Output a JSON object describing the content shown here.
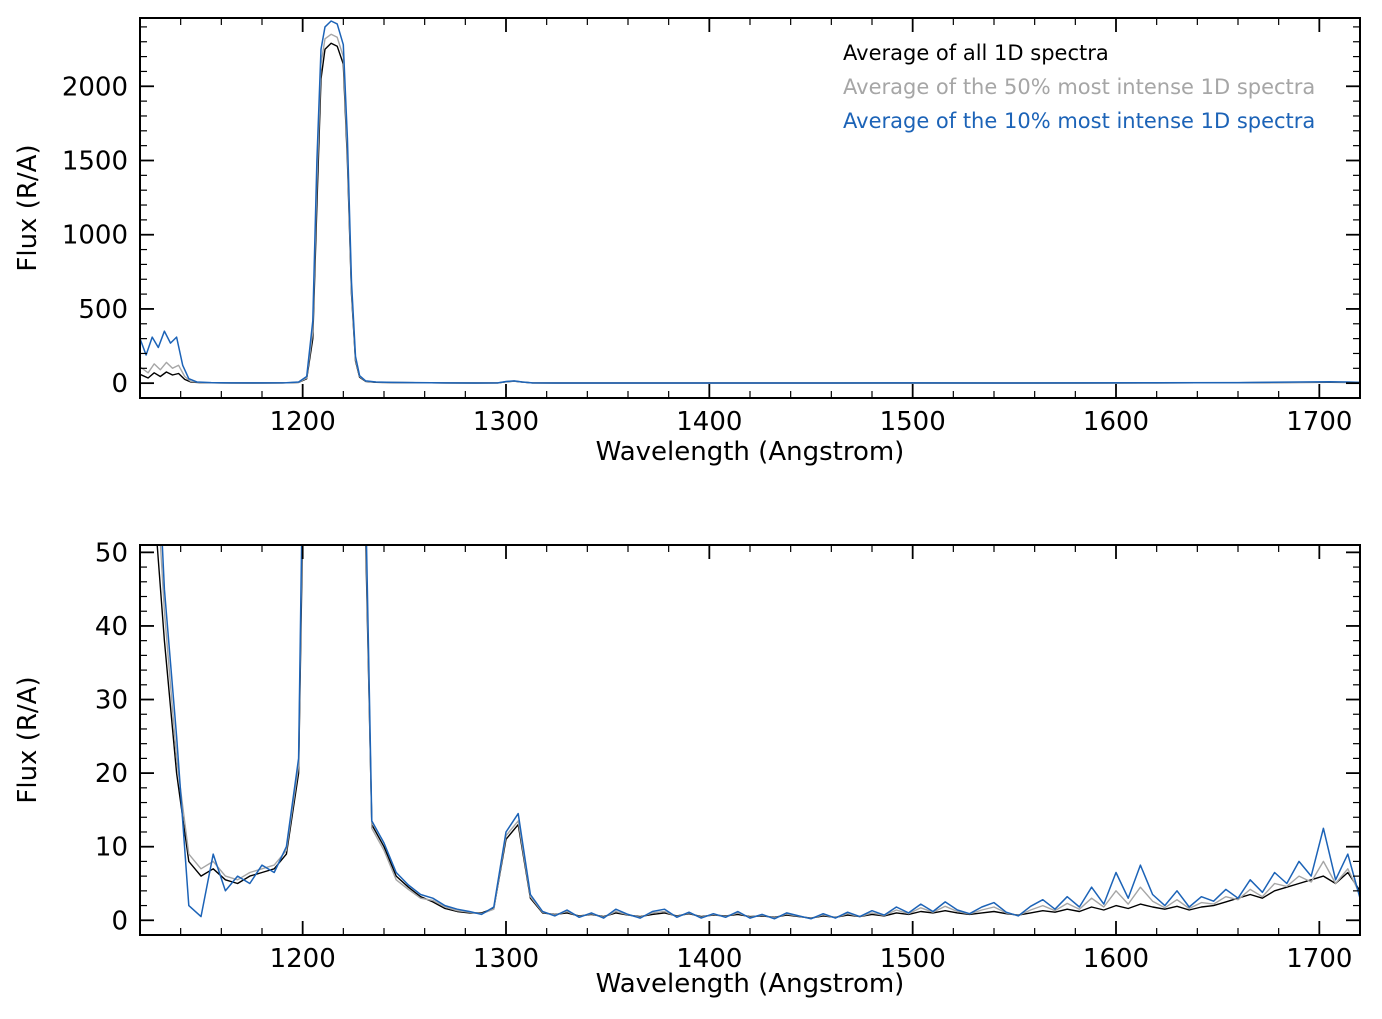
{
  "figure": {
    "background": "#ffffff",
    "frame_color": "#000000",
    "text_color": "#000000"
  },
  "colors": {
    "all_spectra": "#000000",
    "pct50": "#a6a6a6",
    "pct10": "#1c63b7"
  },
  "chart_data": [
    {
      "id": "top-spectrum",
      "type": "line",
      "title": "",
      "xlabel": "Wavelength (Angstrom)",
      "ylabel": "Flux (R/A)",
      "xlim": [
        1120,
        1720
      ],
      "ylim": [
        -100,
        2460
      ],
      "xticks": [
        1200,
        1300,
        1400,
        1500,
        1600,
        1700
      ],
      "xminor_step": 20,
      "yticks": [
        0,
        500,
        1000,
        1500,
        2000
      ],
      "yminor_step": 100,
      "grid": false,
      "legend": {
        "position": "top-right",
        "entries": [
          {
            "label": "Average of all 1D spectra",
            "color": "#000000"
          },
          {
            "label": "Average of the 50% most intense 1D spectra",
            "color": "#a6a6a6"
          },
          {
            "label": "Average of the 10% most intense 1D spectra",
            "color": "#1c63b7"
          }
        ]
      },
      "series": [
        {
          "name": "Average of all 1D spectra",
          "color": "#000000",
          "width": 1.4,
          "points": [
            [
              1120,
              60
            ],
            [
              1124,
              35
            ],
            [
              1127,
              70
            ],
            [
              1130,
              45
            ],
            [
              1133,
              75
            ],
            [
              1136,
              55
            ],
            [
              1139,
              65
            ],
            [
              1142,
              25
            ],
            [
              1145,
              8
            ],
            [
              1150,
              3
            ],
            [
              1160,
              2
            ],
            [
              1175,
              1
            ],
            [
              1190,
              2
            ],
            [
              1198,
              5
            ],
            [
              1202,
              30
            ],
            [
              1205,
              300
            ],
            [
              1207,
              1200
            ],
            [
              1209,
              2050
            ],
            [
              1211,
              2250
            ],
            [
              1214,
              2290
            ],
            [
              1217,
              2270
            ],
            [
              1220,
              2150
            ],
            [
              1222,
              1500
            ],
            [
              1224,
              600
            ],
            [
              1226,
              150
            ],
            [
              1228,
              40
            ],
            [
              1231,
              12
            ],
            [
              1236,
              6
            ],
            [
              1244,
              4
            ],
            [
              1256,
              3
            ],
            [
              1270,
              2
            ],
            [
              1285,
              1
            ],
            [
              1296,
              2
            ],
            [
              1300,
              9
            ],
            [
              1304,
              13
            ],
            [
              1308,
              7
            ],
            [
              1313,
              2
            ],
            [
              1325,
              1
            ],
            [
              1350,
              1
            ],
            [
              1380,
              1
            ],
            [
              1420,
              1
            ],
            [
              1460,
              1
            ],
            [
              1500,
              1
            ],
            [
              1540,
              1
            ],
            [
              1580,
              1
            ],
            [
              1620,
              2
            ],
            [
              1660,
              3
            ],
            [
              1690,
              5
            ],
            [
              1705,
              6
            ],
            [
              1714,
              5
            ],
            [
              1720,
              4
            ]
          ]
        },
        {
          "name": "Average of the 50% most intense 1D spectra",
          "color": "#a6a6a6",
          "width": 1.4,
          "points": [
            [
              1120,
              110
            ],
            [
              1124,
              70
            ],
            [
              1127,
              130
            ],
            [
              1130,
              90
            ],
            [
              1133,
              140
            ],
            [
              1136,
              100
            ],
            [
              1139,
              120
            ],
            [
              1142,
              45
            ],
            [
              1145,
              12
            ],
            [
              1150,
              4
            ],
            [
              1160,
              2
            ],
            [
              1175,
              1
            ],
            [
              1190,
              2
            ],
            [
              1198,
              6
            ],
            [
              1202,
              35
            ],
            [
              1205,
              350
            ],
            [
              1207,
              1350
            ],
            [
              1209,
              2150
            ],
            [
              1211,
              2320
            ],
            [
              1214,
              2350
            ],
            [
              1217,
              2330
            ],
            [
              1220,
              2200
            ],
            [
              1222,
              1550
            ],
            [
              1224,
              620
            ],
            [
              1226,
              160
            ],
            [
              1228,
              45
            ],
            [
              1231,
              13
            ],
            [
              1236,
              7
            ],
            [
              1244,
              5
            ],
            [
              1256,
              3
            ],
            [
              1270,
              2
            ],
            [
              1285,
              1
            ],
            [
              1296,
              2
            ],
            [
              1300,
              10
            ],
            [
              1304,
              14
            ],
            [
              1308,
              8
            ],
            [
              1313,
              2
            ],
            [
              1325,
              1
            ],
            [
              1350,
              1
            ],
            [
              1380,
              1
            ],
            [
              1420,
              1
            ],
            [
              1460,
              1
            ],
            [
              1500,
              1
            ],
            [
              1540,
              1
            ],
            [
              1580,
              1
            ],
            [
              1620,
              2
            ],
            [
              1660,
              3
            ],
            [
              1690,
              6
            ],
            [
              1705,
              7
            ],
            [
              1714,
              6
            ],
            [
              1720,
              4
            ]
          ]
        },
        {
          "name": "Average of the 10% most intense 1D spectra",
          "color": "#1c63b7",
          "width": 1.5,
          "points": [
            [
              1120,
              300
            ],
            [
              1123,
              190
            ],
            [
              1126,
              310
            ],
            [
              1129,
              240
            ],
            [
              1132,
              350
            ],
            [
              1135,
              270
            ],
            [
              1138,
              310
            ],
            [
              1141,
              120
            ],
            [
              1144,
              30
            ],
            [
              1148,
              8
            ],
            [
              1155,
              4
            ],
            [
              1165,
              2
            ],
            [
              1180,
              2
            ],
            [
              1192,
              3
            ],
            [
              1198,
              8
            ],
            [
              1202,
              45
            ],
            [
              1205,
              420
            ],
            [
              1207,
              1500
            ],
            [
              1209,
              2250
            ],
            [
              1211,
              2400
            ],
            [
              1214,
              2440
            ],
            [
              1217,
              2420
            ],
            [
              1220,
              2280
            ],
            [
              1222,
              1650
            ],
            [
              1224,
              680
            ],
            [
              1226,
              180
            ],
            [
              1228,
              50
            ],
            [
              1231,
              15
            ],
            [
              1236,
              8
            ],
            [
              1244,
              5
            ],
            [
              1256,
              4
            ],
            [
              1270,
              2
            ],
            [
              1285,
              1
            ],
            [
              1296,
              2
            ],
            [
              1300,
              11
            ],
            [
              1304,
              15
            ],
            [
              1308,
              8
            ],
            [
              1313,
              2
            ],
            [
              1325,
              1
            ],
            [
              1350,
              1
            ],
            [
              1380,
              1
            ],
            [
              1420,
              1
            ],
            [
              1460,
              1
            ],
            [
              1500,
              2
            ],
            [
              1540,
              1
            ],
            [
              1580,
              2
            ],
            [
              1620,
              3
            ],
            [
              1660,
              4
            ],
            [
              1690,
              8
            ],
            [
              1705,
              10
            ],
            [
              1714,
              8
            ],
            [
              1720,
              5
            ]
          ]
        }
      ]
    },
    {
      "id": "bottom-spectrum-zoom",
      "type": "line",
      "title": "",
      "xlabel": "Wavelength (Angstrom)",
      "ylabel": "Flux (R/A)",
      "xlim": [
        1120,
        1720
      ],
      "ylim": [
        -2,
        51
      ],
      "xticks": [
        1200,
        1300,
        1400,
        1500,
        1600,
        1700
      ],
      "xminor_step": 20,
      "yticks": [
        0,
        10,
        20,
        30,
        40,
        50
      ],
      "yminor_step": 2,
      "grid": false,
      "legend": null,
      "x_step_grid": {
        "start": 1120,
        "step": 6,
        "count": 101
      },
      "series": [
        {
          "name": "Average of all 1D spectra",
          "color": "#000000",
          "width": 1.4,
          "y": [
            120,
            60,
            38,
            20,
            8,
            6,
            7,
            5.5,
            5,
            6,
            6.5,
            7,
            9,
            20,
            120,
            2000,
            2300,
            2000,
            90,
            13,
            10,
            6,
            4.5,
            3.2,
            2.5,
            1.6,
            1.2,
            1.0,
            1.0,
            1.6,
            11,
            13,
            3,
            1.0,
            0.8,
            1.0,
            0.6,
            0.8,
            0.5,
            1.0,
            0.7,
            0.5,
            0.8,
            1.0,
            0.6,
            0.9,
            0.5,
            0.7,
            0.6,
            0.8,
            0.5,
            0.6,
            0.4,
            0.7,
            0.5,
            0.3,
            0.6,
            0.4,
            0.7,
            0.5,
            0.8,
            0.6,
            1.0,
            0.8,
            1.2,
            1.0,
            1.3,
            1.0,
            0.8,
            1.0,
            1.2,
            0.9,
            0.7,
            1.0,
            1.3,
            1.1,
            1.5,
            1.2,
            1.8,
            1.4,
            2.0,
            1.6,
            2.2,
            1.8,
            1.5,
            1.9,
            1.4,
            1.8,
            2.0,
            2.5,
            3.0,
            3.5,
            3.0,
            4.0,
            4.5,
            5.0,
            5.5,
            6.0,
            5.0,
            6.5,
            4.0
          ]
        },
        {
          "name": "Average of the 50% most intense 1D spectra",
          "color": "#a6a6a6",
          "width": 1.4,
          "y": [
            130,
            70,
            42,
            22,
            9,
            7,
            8,
            6,
            5.5,
            6.5,
            7,
            7.5,
            9.5,
            21,
            130,
            2050,
            2350,
            2050,
            95,
            12.5,
            9.5,
            5.5,
            4.2,
            3.0,
            2.7,
            1.8,
            1.3,
            1.1,
            0.9,
            1.5,
            11.5,
            13.5,
            3.2,
            1.1,
            0.7,
            1.2,
            0.5,
            0.9,
            0.4,
            1.2,
            0.75,
            0.4,
            1.0,
            1.2,
            0.5,
            1.0,
            0.4,
            0.8,
            0.5,
            1.0,
            0.4,
            0.7,
            0.3,
            0.85,
            0.55,
            0.25,
            0.75,
            0.35,
            0.9,
            0.5,
            1.0,
            0.65,
            1.4,
            0.9,
            1.7,
            1.1,
            1.9,
            1.2,
            0.85,
            1.4,
            1.8,
            1.0,
            0.65,
            1.4,
            2.0,
            1.3,
            2.3,
            1.5,
            3.0,
            1.8,
            4.0,
            2.2,
            4.5,
            2.6,
            1.7,
            2.8,
            1.6,
            2.4,
            2.2,
            3.2,
            2.8,
            4.2,
            3.2,
            5.0,
            4.6,
            6.0,
            5.2,
            8.0,
            5.0,
            7.0,
            3.5
          ]
        },
        {
          "name": "Average of the 10% most intense 1D spectra",
          "color": "#1c63b7",
          "width": 1.5,
          "y": [
            150,
            80,
            45,
            25,
            2,
            0.5,
            9,
            4,
            6,
            5,
            7.5,
            6.5,
            10,
            22,
            140,
            2100,
            2400,
            2100,
            100,
            13.5,
            10.5,
            6.5,
            4.8,
            3.5,
            3.0,
            2.0,
            1.5,
            1.2,
            0.8,
            1.8,
            12,
            14.5,
            3.5,
            1.2,
            0.6,
            1.4,
            0.4,
            1.0,
            0.3,
            1.5,
            0.8,
            0.3,
            1.2,
            1.5,
            0.4,
            1.1,
            0.3,
            0.9,
            0.4,
            1.2,
            0.3,
            0.8,
            0.2,
            1.0,
            0.6,
            0.2,
            0.9,
            0.3,
            1.1,
            0.5,
            1.3,
            0.7,
            1.8,
            1.0,
            2.2,
            1.2,
            2.5,
            1.4,
            0.9,
            1.8,
            2.4,
            1.1,
            0.6,
            1.9,
            2.8,
            1.5,
            3.2,
            1.8,
            4.5,
            2.2,
            6.5,
            3.0,
            7.5,
            3.5,
            2.0,
            4.0,
            1.8,
            3.2,
            2.6,
            4.2,
            3.0,
            5.5,
            3.8,
            6.5,
            5.0,
            8.0,
            6.0,
            12.5,
            5.5,
            9.0,
            3.0
          ]
        }
      ]
    }
  ]
}
